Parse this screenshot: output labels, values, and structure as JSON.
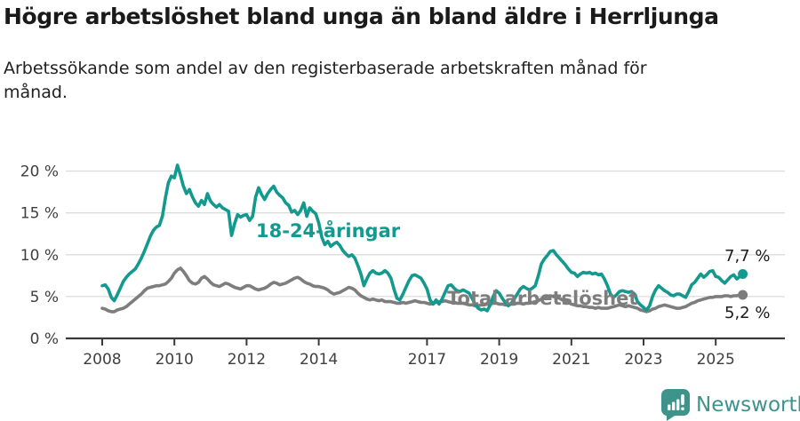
{
  "header": {
    "title": "Högre arbetslöshet bland unga än bland äldre i Herrljunga",
    "subtitle": "Arbetssökande som andel av den registerbaserade arbetskraften månad för månad.",
    "subtitle_line1": "Arbetssökande som andel av den registerbaserade arbetskraften månad för",
    "subtitle_line2": "månad."
  },
  "chart_data": {
    "type": "line",
    "title": "Högre arbetslöshet bland unga än bland äldre i Herrljunga",
    "xlabel": "",
    "ylabel": "Arbetssökande som andel av den registerbaserade arbetskraften",
    "grid": "horizontal",
    "legend_position": "inline-labels",
    "x_unit": "month",
    "x_start": "2008-01",
    "x_end": "2025-10",
    "xlim": [
      2008.0,
      2025.83
    ],
    "ylim": [
      0,
      22
    ],
    "y_ticks": [
      {
        "value": 0,
        "label": "0 %"
      },
      {
        "value": 5,
        "label": "5 %"
      },
      {
        "value": 10,
        "label": "10 %"
      },
      {
        "value": 15,
        "label": "15 %"
      },
      {
        "value": 20,
        "label": "20 %"
      }
    ],
    "x_ticks": [
      {
        "year": 2008,
        "label": "2008"
      },
      {
        "year": 2010,
        "label": "2010"
      },
      {
        "year": 2012,
        "label": "2012"
      },
      {
        "year": 2014,
        "label": "2014"
      },
      {
        "year": 2017,
        "label": "2017"
      },
      {
        "year": 2019,
        "label": "2019"
      },
      {
        "year": 2021,
        "label": "2021"
      },
      {
        "year": 2023,
        "label": "2023"
      },
      {
        "year": 2025,
        "label": "2025"
      }
    ],
    "series": [
      {
        "id": "youth",
        "name": "18-24-åringar",
        "color": "#13998e",
        "end_label": "7,7 %",
        "end_value": 7.7,
        "values": [
          6.3,
          6.4,
          5.9,
          4.9,
          4.5,
          5.2,
          6.0,
          6.8,
          7.3,
          7.7,
          8.0,
          8.3,
          8.9,
          9.6,
          10.4,
          11.3,
          12.2,
          12.9,
          13.3,
          13.5,
          14.6,
          16.8,
          18.6,
          19.4,
          19.2,
          20.7,
          19.5,
          18.2,
          17.3,
          17.8,
          16.9,
          16.2,
          15.8,
          16.5,
          16.0,
          17.3,
          16.4,
          16.0,
          15.7,
          16.0,
          15.6,
          15.4,
          15.2,
          12.3,
          13.7,
          14.8,
          14.5,
          14.7,
          14.8,
          14.1,
          14.6,
          16.9,
          18.0,
          17.2,
          16.6,
          17.3,
          17.8,
          18.2,
          17.5,
          17.1,
          16.8,
          16.2,
          15.9,
          15.1,
          15.3,
          14.8,
          15.3,
          16.2,
          14.6,
          15.6,
          15.2,
          14.9,
          13.8,
          12.1,
          11.2,
          11.6,
          11.0,
          11.3,
          11.5,
          11.1,
          10.5,
          10.1,
          9.8,
          10.0,
          9.6,
          8.7,
          7.7,
          6.3,
          7.1,
          7.8,
          8.1,
          7.8,
          7.7,
          7.8,
          8.1,
          7.8,
          7.2,
          5.9,
          4.8,
          4.6,
          5.3,
          6.1,
          6.9,
          7.5,
          7.6,
          7.4,
          7.2,
          6.6,
          5.9,
          4.6,
          4.1,
          4.6,
          4.1,
          4.7,
          5.5,
          6.3,
          6.4,
          6.0,
          5.7,
          5.6,
          5.8,
          5.6,
          5.4,
          4.8,
          4.1,
          3.6,
          3.4,
          3.5,
          3.3,
          4.0,
          5.0,
          5.7,
          5.4,
          4.8,
          4.3,
          3.9,
          4.2,
          4.7,
          5.3,
          5.9,
          6.2,
          6.0,
          5.8,
          6.0,
          6.3,
          7.5,
          8.9,
          9.5,
          9.9,
          10.4,
          10.5,
          10.0,
          9.6,
          9.2,
          8.8,
          8.3,
          7.9,
          7.8,
          7.4,
          7.7,
          7.9,
          7.8,
          7.9,
          7.7,
          7.8,
          7.6,
          7.7,
          7.1,
          6.3,
          5.3,
          4.9,
          5.2,
          5.6,
          5.7,
          5.6,
          5.5,
          5.6,
          5.3,
          4.4,
          4.0,
          3.7,
          3.4,
          3.9,
          5.0,
          5.8,
          6.3,
          6.0,
          5.7,
          5.5,
          5.2,
          5.1,
          5.3,
          5.3,
          5.1,
          4.9,
          5.6,
          6.4,
          6.7,
          7.2,
          7.7,
          7.3,
          7.6,
          8.0,
          8.1,
          7.4,
          7.3,
          6.9,
          6.6,
          7.0,
          7.4,
          7.6,
          7.1,
          7.4,
          7.7
        ]
      },
      {
        "id": "total",
        "name": "Total arbetslöshet",
        "color": "#7d7d7d",
        "end_label": "5,2 %",
        "end_value": 5.2,
        "values": [
          3.6,
          3.5,
          3.3,
          3.2,
          3.2,
          3.4,
          3.5,
          3.6,
          3.8,
          4.1,
          4.4,
          4.7,
          5.0,
          5.3,
          5.7,
          6.0,
          6.1,
          6.2,
          6.3,
          6.3,
          6.4,
          6.5,
          6.8,
          7.2,
          7.8,
          8.2,
          8.4,
          8.0,
          7.5,
          6.9,
          6.6,
          6.5,
          6.7,
          7.2,
          7.4,
          7.1,
          6.7,
          6.4,
          6.3,
          6.2,
          6.4,
          6.6,
          6.5,
          6.3,
          6.1,
          6.0,
          5.9,
          6.1,
          6.3,
          6.3,
          6.1,
          5.9,
          5.8,
          5.9,
          6.0,
          6.2,
          6.5,
          6.7,
          6.6,
          6.4,
          6.5,
          6.6,
          6.8,
          7.0,
          7.2,
          7.3,
          7.1,
          6.8,
          6.6,
          6.5,
          6.3,
          6.2,
          6.2,
          6.1,
          6.0,
          5.8,
          5.5,
          5.3,
          5.4,
          5.5,
          5.7,
          5.9,
          6.1,
          6.0,
          5.8,
          5.4,
          5.1,
          4.9,
          4.7,
          4.6,
          4.7,
          4.6,
          4.5,
          4.6,
          4.4,
          4.4,
          4.4,
          4.3,
          4.2,
          4.2,
          4.3,
          4.2,
          4.3,
          4.4,
          4.5,
          4.4,
          4.3,
          4.3,
          4.2,
          4.1,
          4.2,
          4.3,
          4.4,
          4.4,
          4.5,
          4.4,
          4.3,
          4.3,
          4.2,
          4.2,
          4.2,
          4.1,
          4.0,
          4.0,
          3.9,
          3.9,
          4.0,
          4.0,
          4.1,
          4.1,
          4.2,
          4.2,
          4.1,
          4.1,
          4.0,
          4.0,
          4.1,
          4.1,
          4.2,
          4.2,
          4.1,
          4.2,
          4.2,
          4.3,
          4.4,
          4.5,
          4.7,
          4.9,
          5.0,
          5.1,
          5.0,
          4.9,
          4.8,
          4.6,
          4.4,
          4.3,
          4.1,
          4.0,
          3.9,
          3.9,
          3.8,
          3.8,
          3.7,
          3.7,
          3.6,
          3.7,
          3.6,
          3.6,
          3.6,
          3.7,
          3.8,
          3.9,
          4.0,
          3.9,
          3.8,
          3.9,
          3.8,
          3.7,
          3.6,
          3.4,
          3.3,
          3.2,
          3.3,
          3.5,
          3.6,
          3.8,
          3.9,
          4.0,
          3.9,
          3.8,
          3.7,
          3.6,
          3.6,
          3.7,
          3.8,
          4.0,
          4.2,
          4.3,
          4.5,
          4.6,
          4.7,
          4.8,
          4.9,
          4.9,
          5.0,
          5.0,
          5.0,
          5.1,
          5.1,
          5.0,
          5.1,
          5.1,
          5.2,
          5.2
        ]
      }
    ]
  },
  "annotations": {
    "youth_label": "18-24-åringar",
    "total_label": "Total arbetslöshet",
    "youth_end_value": "7,7 %",
    "total_end_value": "5,2 %"
  },
  "footer": {
    "brand": "Newsworthy",
    "logo_icon": "speech-bubble-bar-chart"
  },
  "colors": {
    "youth": "#13998e",
    "total": "#7d7d7d",
    "grid": "#dcdcdc",
    "axis": "#3a3a3a",
    "text": "#1a1a1a",
    "tick_text": "#3f3f3f",
    "brand": "#3e938b"
  }
}
